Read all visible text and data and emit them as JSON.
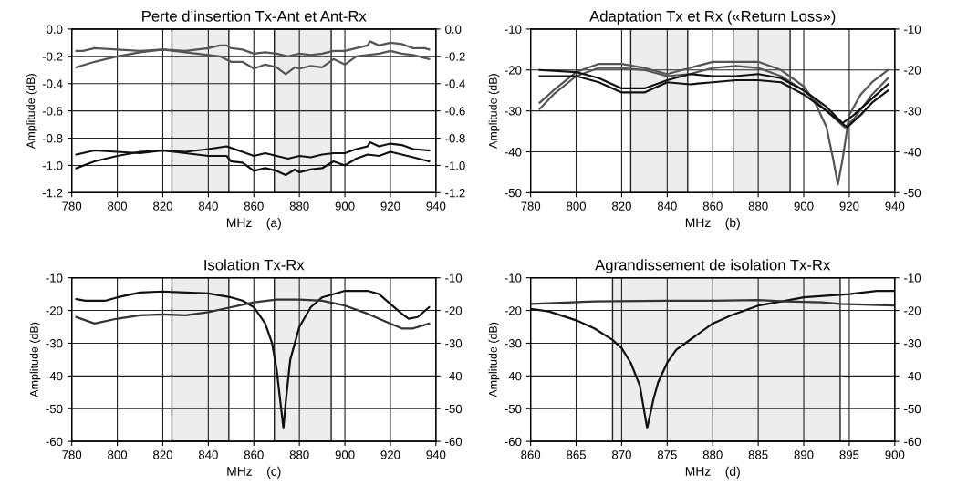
{
  "chart_data": [
    {
      "type": "line",
      "title": "Perte d’insertion Tx-Ant et Ant-Rx",
      "xlabel": "MHz    (a)",
      "ylabel": "Amplitude (dB)",
      "xlim": [
        780,
        940
      ],
      "xticks": [
        780,
        800,
        820,
        840,
        860,
        880,
        900,
        920,
        940
      ],
      "ylim": [
        -1.2,
        0.0
      ],
      "yticks": [
        {
          "value": -1.2,
          "label": "-1.2"
        },
        {
          "value": -1.0,
          "label": "-1.0"
        },
        {
          "value": -0.8,
          "label": "-0.8"
        },
        {
          "value": -0.6,
          "label": "-0.6"
        },
        {
          "value": -0.4,
          "label": "-0.4"
        },
        {
          "value": -0.2,
          "label": "-0.2"
        },
        {
          "value": 0.0,
          "label": "0.0"
        }
      ],
      "y2lim": [
        -1.2,
        0.0
      ],
      "y2ticks": [
        {
          "value": -1.2,
          "label": "-1.2"
        },
        {
          "value": -1.0,
          "label": "-1.0"
        },
        {
          "value": -0.8,
          "label": "-0.8"
        },
        {
          "value": -0.6,
          "label": "-0.6"
        },
        {
          "value": -0.4,
          "label": "-0.4"
        },
        {
          "value": -0.2,
          "label": "-0.2"
        },
        {
          "value": 0.0,
          "label": "0.0"
        }
      ],
      "grid": true,
      "bands": [
        {
          "axis": "x",
          "from": 824,
          "to": 849,
          "color": "#222222"
        },
        {
          "axis": "x",
          "from": 869,
          "to": 894,
          "color": "#222222"
        }
      ],
      "series": [
        {
          "color": "#555555",
          "x": [
            782,
            785,
            790,
            800,
            810,
            820,
            830,
            835,
            840,
            845,
            848,
            850,
            855,
            860,
            865,
            870,
            875,
            880,
            885,
            890,
            895,
            900,
            905,
            910,
            911,
            915,
            920,
            925,
            930,
            935,
            937
          ],
          "values": [
            -0.16,
            -0.16,
            -0.14,
            -0.15,
            -0.16,
            -0.15,
            -0.16,
            -0.15,
            -0.14,
            -0.12,
            -0.12,
            -0.14,
            -0.15,
            -0.18,
            -0.17,
            -0.18,
            -0.2,
            -0.18,
            -0.19,
            -0.18,
            -0.16,
            -0.16,
            -0.14,
            -0.12,
            -0.09,
            -0.12,
            -0.1,
            -0.11,
            -0.14,
            -0.14,
            -0.15
          ]
        },
        {
          "color": "#555555",
          "x": [
            782,
            790,
            800,
            810,
            820,
            830,
            840,
            845,
            850,
            855,
            860,
            865,
            870,
            874,
            878,
            880,
            885,
            890,
            895,
            900,
            905,
            910,
            915,
            920,
            925,
            930,
            937
          ],
          "values": [
            -0.28,
            -0.24,
            -0.2,
            -0.17,
            -0.15,
            -0.17,
            -0.19,
            -0.2,
            -0.24,
            -0.24,
            -0.29,
            -0.26,
            -0.28,
            -0.33,
            -0.28,
            -0.29,
            -0.27,
            -0.28,
            -0.22,
            -0.26,
            -0.2,
            -0.19,
            -0.18,
            -0.16,
            -0.18,
            -0.19,
            -0.22
          ]
        },
        {
          "color": "#111111",
          "x": [
            782,
            790,
            800,
            810,
            820,
            830,
            840,
            848,
            855,
            860,
            865,
            870,
            875,
            880,
            885,
            890,
            895,
            900,
            905,
            910,
            911,
            915,
            920,
            925,
            930,
            937
          ],
          "values": [
            -0.92,
            -0.89,
            -0.9,
            -0.91,
            -0.89,
            -0.9,
            -0.88,
            -0.86,
            -0.9,
            -0.93,
            -0.91,
            -0.93,
            -0.95,
            -0.93,
            -0.94,
            -0.92,
            -0.91,
            -0.91,
            -0.88,
            -0.86,
            -0.83,
            -0.86,
            -0.84,
            -0.85,
            -0.88,
            -0.89
          ]
        },
        {
          "color": "#111111",
          "x": [
            782,
            790,
            800,
            810,
            820,
            830,
            840,
            848,
            850,
            855,
            860,
            865,
            870,
            874,
            878,
            880,
            885,
            890,
            895,
            900,
            905,
            910,
            915,
            920,
            925,
            930,
            937
          ],
          "values": [
            -1.02,
            -0.97,
            -0.93,
            -0.9,
            -0.89,
            -0.91,
            -0.93,
            -0.93,
            -0.97,
            -0.98,
            -1.04,
            -1.02,
            -1.04,
            -1.07,
            -1.03,
            -1.05,
            -1.03,
            -1.02,
            -0.97,
            -1.0,
            -0.95,
            -0.92,
            -0.93,
            -0.9,
            -0.92,
            -0.94,
            -0.97
          ]
        }
      ]
    },
    {
      "type": "line",
      "title": "Adaptation Tx et Rx («Return Loss»)",
      "xlabel": "MHz    (b)",
      "ylabel": "Amplitude (dB)",
      "xlim": [
        780,
        940
      ],
      "xticks": [
        780,
        800,
        820,
        840,
        860,
        880,
        900,
        920,
        940
      ],
      "ylim": [
        -50,
        -10
      ],
      "yticks": [
        -50,
        -40,
        -30,
        -20,
        -10
      ],
      "y2lim": [
        -50,
        -10
      ],
      "y2ticks": [
        -50,
        -40,
        -30,
        -20,
        -10
      ],
      "grid": true,
      "bands": [
        {
          "axis": "x",
          "from": 824,
          "to": 849,
          "color": "#222222"
        },
        {
          "axis": "x",
          "from": 869,
          "to": 894,
          "color": "#222222"
        }
      ],
      "series": [
        {
          "color": "#555555",
          "x": [
            784,
            790,
            800,
            810,
            820,
            830,
            840,
            850,
            860,
            870,
            880,
            890,
            900,
            905,
            910,
            913,
            915,
            917,
            920,
            925,
            930,
            937
          ],
          "values": [
            -28,
            -25,
            -20.5,
            -18.5,
            -18.5,
            -19.5,
            -21,
            -19.5,
            -18,
            -18,
            -18,
            -20,
            -24,
            -28,
            -34,
            -42,
            -48,
            -42,
            -31,
            -26,
            -23,
            -20
          ]
        },
        {
          "color": "#555555",
          "x": [
            784,
            790,
            800,
            810,
            820,
            830,
            840,
            850,
            860,
            870,
            880,
            890,
            900,
            910,
            918,
            922,
            930,
            937
          ],
          "values": [
            -29.5,
            -26,
            -21.5,
            -19.5,
            -19.5,
            -20,
            -21.5,
            -21,
            -19.5,
            -19,
            -19.5,
            -21.5,
            -25,
            -30,
            -34,
            -32,
            -26,
            -22
          ]
        },
        {
          "color": "#111111",
          "x": [
            784,
            800,
            810,
            820,
            830,
            840,
            850,
            860,
            870,
            880,
            890,
            900,
            910,
            917,
            922,
            930,
            937
          ],
          "values": [
            -20,
            -20.5,
            -22,
            -24.5,
            -24.5,
            -22.5,
            -21,
            -21.5,
            -21.5,
            -21,
            -22,
            -25,
            -29,
            -33,
            -31,
            -27,
            -23.5
          ]
        },
        {
          "color": "#111111",
          "x": [
            784,
            800,
            810,
            820,
            830,
            840,
            850,
            860,
            870,
            880,
            890,
            900,
            910,
            919,
            925,
            930,
            937
          ],
          "values": [
            -21.5,
            -21.5,
            -23,
            -25.5,
            -25.5,
            -23,
            -23.5,
            -23,
            -22.5,
            -22.5,
            -23,
            -26,
            -30,
            -34,
            -31,
            -28,
            -25
          ]
        }
      ]
    },
    {
      "type": "line",
      "title": "Isolation Tx-Rx",
      "xlabel": "MHz    (c)",
      "ylabel": "Amplitude (dB)",
      "xlim": [
        780,
        940
      ],
      "xticks": [
        780,
        800,
        820,
        840,
        860,
        880,
        900,
        920,
        940
      ],
      "ylim": [
        -60,
        -10
      ],
      "yticks": [
        -60,
        -50,
        -40,
        -30,
        -20,
        -10
      ],
      "y2lim": [
        -60,
        -10
      ],
      "y2ticks": [
        -60,
        -50,
        -40,
        -30,
        -20,
        -10
      ],
      "grid": true,
      "bands": [
        {
          "axis": "x",
          "from": 824,
          "to": 849,
          "color": "#222222"
        },
        {
          "axis": "x",
          "from": 869,
          "to": 894,
          "color": "#222222"
        }
      ],
      "series": [
        {
          "color": "#111111",
          "x": [
            782,
            786,
            795,
            800,
            810,
            820,
            830,
            840,
            850,
            855,
            860,
            865,
            868,
            870,
            872,
            873,
            874,
            876,
            880,
            885,
            890,
            900,
            910,
            915,
            920,
            925,
            928,
            932,
            937
          ],
          "values": [
            -16.5,
            -17,
            -17,
            -16,
            -14.5,
            -14.2,
            -14.5,
            -14.8,
            -16,
            -17,
            -19,
            -24,
            -30,
            -38,
            -50,
            -56,
            -48,
            -35,
            -25,
            -19,
            -16,
            -14,
            -14,
            -15,
            -18,
            -21,
            -22.5,
            -22,
            -19
          ]
        },
        {
          "color": "#333333",
          "x": [
            782,
            790,
            800,
            810,
            820,
            830,
            840,
            850,
            860,
            870,
            880,
            890,
            900,
            910,
            920,
            925,
            930,
            937
          ],
          "values": [
            -22,
            -24,
            -22.5,
            -21.5,
            -21.2,
            -21.5,
            -20.5,
            -19,
            -17.5,
            -16.7,
            -16.7,
            -17,
            -18.5,
            -21,
            -24,
            -25.5,
            -25.5,
            -24
          ]
        }
      ]
    },
    {
      "type": "line",
      "title": "Agrandissement de isolation Tx-Rx",
      "xlabel": "MHz    (d)",
      "ylabel": "Amplitude (dB)",
      "xlim": [
        860,
        900
      ],
      "xticks": [
        860,
        865,
        870,
        875,
        880,
        885,
        890,
        895,
        900
      ],
      "ylim": [
        -60,
        -10
      ],
      "yticks": [
        -60,
        -50,
        -40,
        -30,
        -20,
        -10
      ],
      "y2lim": [
        -60,
        -10
      ],
      "y2ticks": [
        -60,
        -50,
        -40,
        -30,
        -20,
        -10
      ],
      "grid": true,
      "bands": [
        {
          "axis": "x",
          "from": 869,
          "to": 894,
          "color": "#222222"
        }
      ],
      "series": [
        {
          "color": "#111111",
          "x": [
            860,
            862,
            865,
            867,
            869,
            870,
            871,
            872,
            872.8,
            873.5,
            874,
            875,
            876,
            878,
            880,
            882,
            885,
            888,
            890,
            895,
            898,
            900
          ],
          "values": [
            -19.5,
            -20.3,
            -23,
            -25.5,
            -29,
            -31.5,
            -36,
            -43,
            -56,
            -47,
            -42,
            -36,
            -32,
            -28,
            -24,
            -21.5,
            -18.5,
            -17,
            -16,
            -15,
            -14,
            -14
          ]
        },
        {
          "color": "#333333",
          "x": [
            860,
            862,
            867,
            875,
            880,
            885,
            888,
            892,
            894,
            900
          ],
          "values": [
            -18,
            -17.8,
            -17.2,
            -17,
            -17,
            -16.8,
            -17.2,
            -17.5,
            -18,
            -18.5
          ]
        }
      ]
    }
  ]
}
